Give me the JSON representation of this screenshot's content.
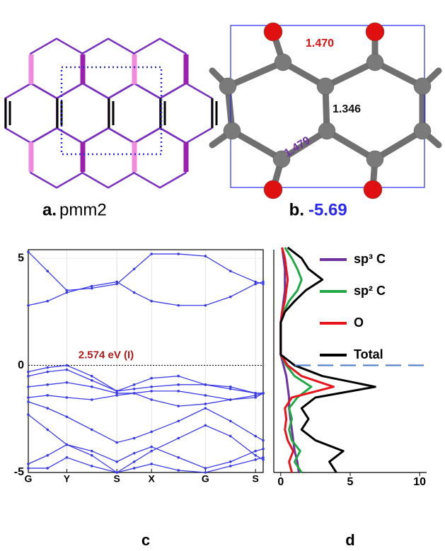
{
  "panel_a": {
    "label": "a.",
    "caption": "pmm2"
  },
  "panel_b": {
    "label": "b.",
    "energy": "-5.69",
    "bond_lengths": [
      "1.470",
      "1.346",
      "1.479"
    ]
  },
  "chart_data": [
    {
      "type": "band",
      "panel_label": "c",
      "annotation": "2.574 eV (I)",
      "color": "#3b3be6",
      "grid": true,
      "x": [
        0,
        0.5,
        1,
        1.65,
        2.3,
        2.75,
        3.2,
        3.9,
        4.6,
        5.25,
        5.9,
        6.1
      ],
      "xlim": [
        0,
        6.1
      ],
      "xticks": [
        {
          "value": 0,
          "label": "G"
        },
        {
          "value": 1,
          "label": "Y"
        },
        {
          "value": 2.3,
          "label": "S"
        },
        {
          "value": 3.2,
          "label": "X"
        },
        {
          "value": 4.6,
          "label": "G"
        },
        {
          "value": 5.9,
          "label": "S"
        }
      ],
      "ylim": [
        -5,
        5.4
      ],
      "yticks": [
        -5,
        0,
        5
      ],
      "series": [
        {
          "values": [
            5.3,
            4.4,
            3.5,
            3.6,
            3.8,
            4.5,
            5.2,
            5.2,
            5.1,
            4.4,
            3.9,
            3.8
          ]
        },
        {
          "values": [
            2.8,
            3.0,
            3.4,
            3.7,
            3.9,
            3.4,
            3.0,
            2.8,
            2.8,
            3.2,
            3.8,
            3.9
          ]
        },
        {
          "values": [
            -0.3,
            -0.1,
            0,
            -0.5,
            -1.2,
            -0.9,
            -0.6,
            -0.5,
            -0.9,
            -1.0,
            -1.3,
            -1.3
          ]
        },
        {
          "values": [
            -0.5,
            -0.3,
            -0.2,
            -0.7,
            -1.2,
            -1.1,
            -1.0,
            -0.9,
            -0.9,
            -1.1,
            -1.3,
            -1.3
          ]
        },
        {
          "values": [
            -1.0,
            -0.9,
            -0.8,
            -1.0,
            -1.3,
            -1.3,
            -1.2,
            -1.2,
            -1.4,
            -1.6,
            -1.5,
            -1.3
          ]
        },
        {
          "values": [
            -1.5,
            -1.4,
            -1.5,
            -1.6,
            -1.4,
            -1.3,
            -1.6,
            -1.9,
            -1.8,
            -1.6,
            -1.4,
            -1.3
          ]
        },
        {
          "values": [
            -1.7,
            -2.0,
            -2.4,
            -3.0,
            -3.6,
            -3.4,
            -3.1,
            -2.6,
            -2.0,
            -2.6,
            -3.3,
            -3.5
          ]
        },
        {
          "values": [
            -2.3,
            -3.0,
            -3.7,
            -4.2,
            -5.0,
            -4.5,
            -4.0,
            -3.4,
            -2.8,
            -3.3,
            -4.2,
            -4.4
          ]
        },
        {
          "values": [
            -4.6,
            -4.2,
            -3.7,
            -4.0,
            -4.5,
            -4.1,
            -3.8,
            -4.3,
            -4.8,
            -4.5,
            -4.0,
            -3.9
          ]
        },
        {
          "values": [
            -4.8,
            -4.8,
            -4.3,
            -4.7,
            -5.0,
            -4.8,
            -4.6,
            -4.9,
            -5.0,
            -4.7,
            -4.4,
            -4.3
          ]
        }
      ]
    },
    {
      "type": "dos",
      "panel_label": "d",
      "y": [
        -5,
        -4.5,
        -4,
        -3.5,
        -3,
        -2.5,
        -2,
        -1.5,
        -1,
        -0.5,
        0,
        0.5,
        1,
        1.5,
        2,
        2.5,
        3,
        3.5,
        4,
        4.5,
        5,
        5.5
      ],
      "ylim": [
        -5,
        5.4
      ],
      "xlim": [
        -0.5,
        10.5
      ],
      "xticks": [
        0,
        5,
        10
      ],
      "series": [
        {
          "name": "sp³ C",
          "color": "#7030a0",
          "values": [
            1.3,
            1.2,
            1.0,
            0.9,
            0.8,
            0.7,
            0.6,
            0.6,
            0.5,
            0.4,
            0.2,
            0,
            0,
            0,
            0,
            0.1,
            0.2,
            0.3,
            0.3,
            0.3,
            0.2,
            0.1
          ]
        },
        {
          "name": "sp² C",
          "color": "#22a846",
          "values": [
            1.5,
            1.0,
            1.4,
            0.8,
            0.6,
            0.8,
            0.6,
            1.2,
            2.2,
            1.0,
            0.4,
            0,
            0,
            0,
            0,
            0.2,
            0.6,
            1.2,
            1.5,
            1.2,
            0.8,
            0.3
          ]
        },
        {
          "name": "O",
          "color": "#e8141c",
          "values": [
            0.8,
            0.6,
            0.9,
            0.5,
            0.3,
            0.4,
            0.3,
            0.8,
            3.8,
            1.5,
            0.5,
            0,
            0,
            0,
            0,
            0.1,
            0.3,
            0.4,
            0.5,
            0.4,
            0.3,
            0.1
          ]
        },
        {
          "name": "Total",
          "color": "#000000",
          "values": [
            4,
            3.5,
            4.5,
            2.5,
            1.5,
            2,
            1.5,
            2.5,
            6.8,
            3,
            1,
            0,
            0,
            0,
            0,
            0.3,
            1,
            1.8,
            3,
            2,
            1.5,
            0.5
          ]
        }
      ]
    }
  ]
}
